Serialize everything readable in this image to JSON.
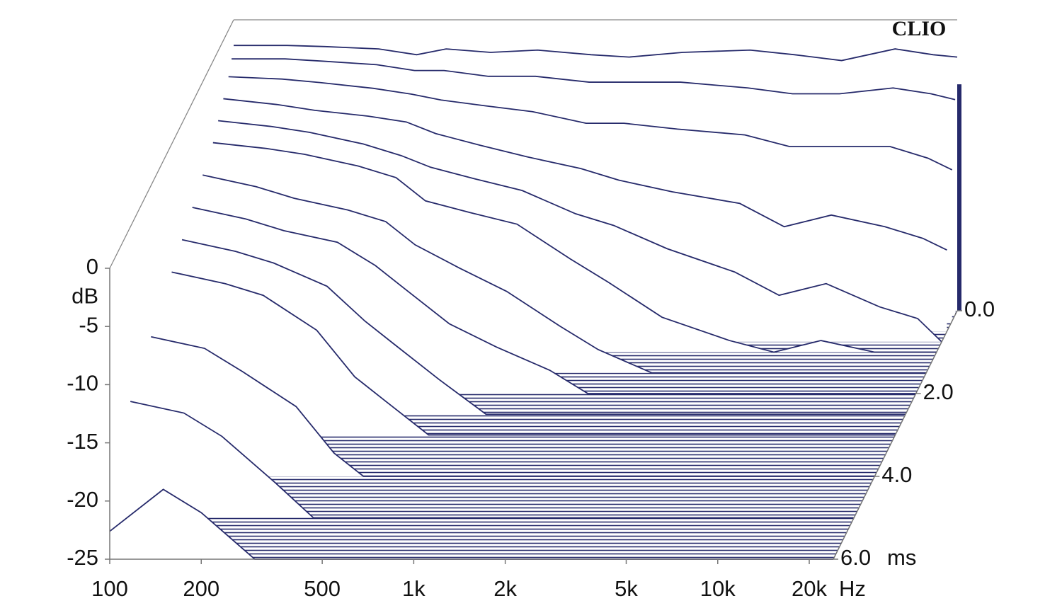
{
  "chart_data": {
    "type": "waterfall",
    "logo": "CLIO",
    "x_label": "Hz",
    "y_label": "dB",
    "z_label": "ms",
    "color": "#262a6b",
    "log_x": true,
    "xlim": [
      100,
      24000
    ],
    "xticks": [
      100,
      200,
      500,
      {
        "value": 1000,
        "label": "1k"
      },
      {
        "value": 2000,
        "label": "2k"
      },
      {
        "value": 5000,
        "label": "5k"
      },
      {
        "value": 10000,
        "label": "10k"
      },
      {
        "value": 20000,
        "label": "20k"
      }
    ],
    "ylim": [
      -25,
      0
    ],
    "yticks": [
      0,
      -5,
      -10,
      -15,
      -20,
      -25
    ],
    "zlim": [
      0,
      6
    ],
    "zticks": [
      {
        "value": 0,
        "label": "0.0"
      },
      {
        "value": 2,
        "label": "2.0"
      },
      {
        "value": 4,
        "label": "4.0"
      },
      {
        "value": 6,
        "label": "6.0"
      }
    ],
    "x": [
      100,
      150,
      200,
      300,
      400,
      500,
      700,
      1000,
      1500,
      2000,
      3000,
      5000,
      7000,
      10000,
      15000,
      20000,
      24000
    ],
    "slices": [
      {
        "time": 0,
        "values": [
          -2.2,
          -2.2,
          -2.3,
          -2.5,
          -3,
          -2.5,
          -2.8,
          -2.6,
          -3,
          -3.2,
          -2.8,
          -2.6,
          -3,
          -3.5,
          -2.5,
          -3,
          -3.2
        ]
      },
      {
        "time": 0.1,
        "values": [
          -3,
          -3,
          -3.2,
          -3.5,
          -4,
          -4,
          -4.5,
          -4.5,
          -5,
          -5,
          -5,
          -5.5,
          -6,
          -6,
          -5.5,
          -6,
          -6.5
        ]
      },
      {
        "time": 0.25,
        "values": [
          -4,
          -4.2,
          -4.5,
          -5,
          -5.5,
          -6,
          -6.5,
          -7,
          -8,
          -8,
          -8.5,
          -9,
          -10,
          -10,
          -10,
          -11,
          -12
        ]
      },
      {
        "time": 0.5,
        "values": [
          -5,
          -5.5,
          -6,
          -6.5,
          -7,
          -8,
          -9,
          -10,
          -11,
          -12,
          -13,
          -14,
          -16,
          -15,
          -16,
          -17,
          -18
        ]
      },
      {
        "time": 0.75,
        "values": [
          -6,
          -6.5,
          -7,
          -8,
          -9,
          -10,
          -11,
          -12,
          -14,
          -15,
          -17,
          -19,
          -21,
          -20,
          -22,
          -23,
          -25
        ]
      },
      {
        "time": 1,
        "values": [
          -7,
          -7.5,
          -8,
          -9,
          -10,
          -12,
          -13,
          -14,
          -17,
          -19,
          -22,
          -24,
          -25,
          -24,
          -25,
          -25,
          -25
        ]
      },
      {
        "time": 1.5,
        "values": [
          -8,
          -9,
          -10,
          -11,
          -12,
          -14,
          -16,
          -18,
          -21,
          -23,
          -25,
          -25,
          -25,
          -25,
          -25,
          -25,
          -25
        ]
      },
      {
        "time": 2,
        "values": [
          -9,
          -10,
          -11,
          -12,
          -14,
          -16,
          -19,
          -21,
          -23,
          -25,
          -25,
          -25,
          -25,
          -25,
          -25,
          -25,
          -25
        ]
      },
      {
        "time": 2.5,
        "values": [
          -10,
          -11,
          -12,
          -14,
          -17,
          -19,
          -22,
          -25,
          -25,
          -25,
          -25,
          -25,
          -25,
          -25,
          -25,
          -25,
          -25
        ]
      },
      {
        "time": 3,
        "values": [
          -11,
          -12,
          -13,
          -16,
          -20,
          -22,
          -25,
          -25,
          -25,
          -25,
          -25,
          -25,
          -25,
          -25,
          -25,
          -25,
          -25
        ]
      },
      {
        "time": 4,
        "values": [
          -13,
          -14,
          -16,
          -19,
          -23,
          -25,
          -25,
          -25,
          -25,
          -25,
          -25,
          -25,
          -25,
          -25,
          -25,
          -25,
          -25
        ]
      },
      {
        "time": 5,
        "values": [
          -15,
          -16,
          -18,
          -22,
          -25,
          -25,
          -25,
          -25,
          -25,
          -25,
          -25,
          -25,
          -25,
          -25,
          -25,
          -25,
          -25
        ]
      },
      {
        "time": 6,
        "values": [
          -22.6,
          -19,
          -21,
          -25,
          -25,
          -25,
          -25,
          -25,
          -25,
          -25,
          -25,
          -25,
          -25,
          -25,
          -25,
          -25,
          -25
        ]
      }
    ]
  }
}
